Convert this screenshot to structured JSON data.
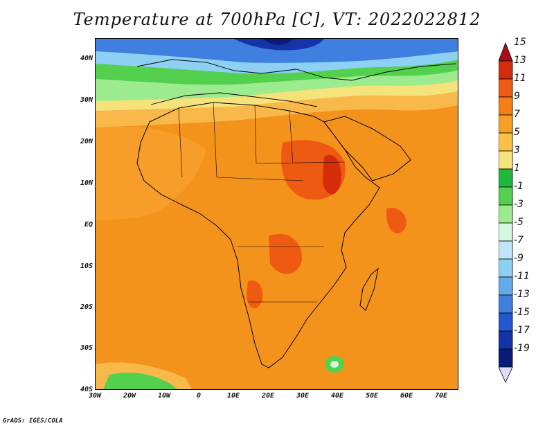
{
  "title": "Temperature at 700hPa [C], VT: 2022022812",
  "credit": "GrADS: IGES/COLA",
  "map": {
    "projection": "lat-lon",
    "lon_range": [
      -30,
      75
    ],
    "lat_range": [
      -40,
      45
    ],
    "lat_ticks": [
      "40N",
      "30N",
      "20N",
      "10N",
      "EQ",
      "10S",
      "20S",
      "30S",
      "40S"
    ],
    "lon_ticks": [
      "30W",
      "20W",
      "10W",
      "0",
      "10E",
      "20E",
      "30E",
      "40E",
      "50E",
      "60E",
      "70E"
    ]
  },
  "colorbar": {
    "labels": [
      "15",
      "13",
      "11",
      "9",
      "7",
      "5",
      "3",
      "1",
      "-1",
      "-3",
      "-5",
      "-7",
      "-9",
      "-11",
      "-13",
      "-15",
      "-17",
      "-19"
    ],
    "colors": [
      "#a50f15",
      "#d62c0c",
      "#ee5a12",
      "#f57e14",
      "#f99e20",
      "#fbc044",
      "#f6e27a",
      "#1fb83c",
      "#52d04e",
      "#9deb8f",
      "#d4f8e0",
      "#bfe6f8",
      "#8ed0f3",
      "#64aaea",
      "#3f7fe0",
      "#2356d0",
      "#1433a8",
      "#0a1a78",
      "#dcdcff"
    ]
  }
}
